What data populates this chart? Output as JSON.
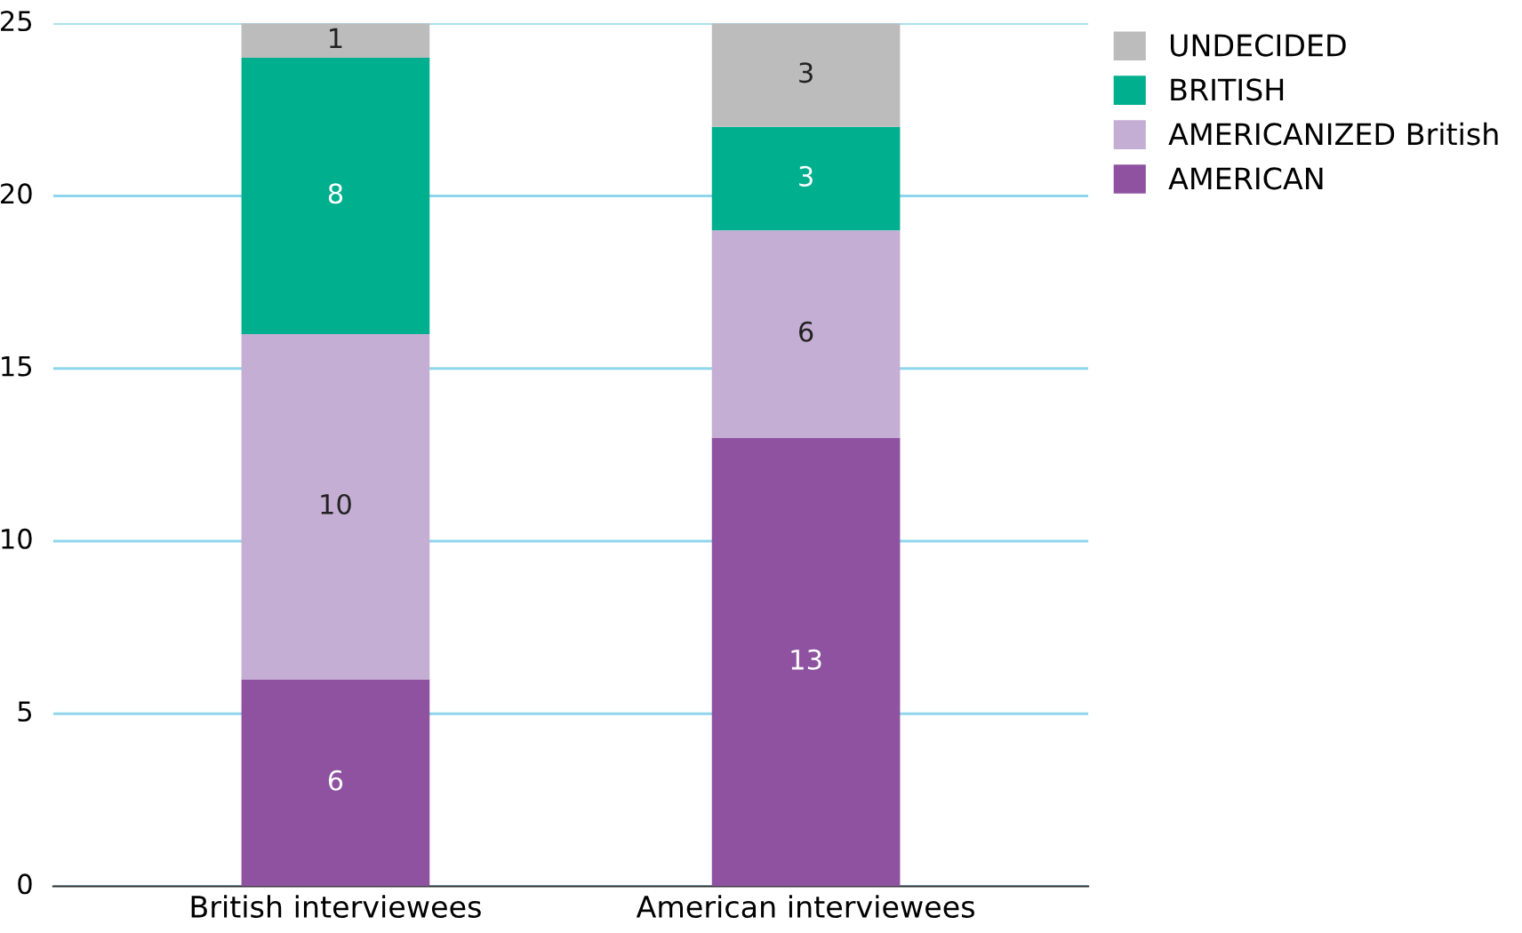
{
  "chart_data": {
    "type": "bar",
    "stacked": true,
    "categories": [
      "British interviewees",
      "American interviewees"
    ],
    "series": [
      {
        "name": "AMERICAN",
        "color": "#8e52a1",
        "values": [
          6,
          13
        ]
      },
      {
        "name": "AMERICANIZED British",
        "color": "#c5aed4",
        "values": [
          10,
          6
        ]
      },
      {
        "name": "BRITISH",
        "color": "#00af8e",
        "values": [
          8,
          3
        ]
      },
      {
        "name": "UNDECIDED",
        "color": "#bcbcbc",
        "values": [
          1,
          3
        ]
      }
    ],
    "ylim": [
      0,
      25
    ],
    "yticks": [
      0,
      5,
      10,
      15,
      20,
      25
    ],
    "grid": "y",
    "legend": "top right",
    "data_labels": true
  }
}
